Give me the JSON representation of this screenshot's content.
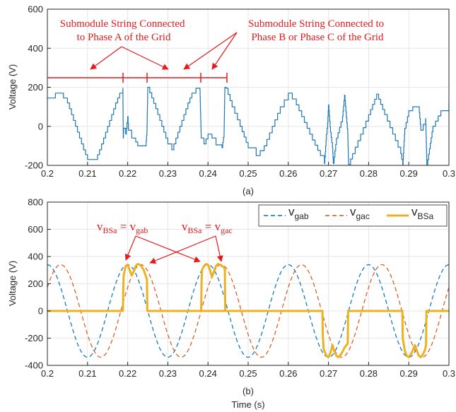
{
  "chart_data": [
    {
      "type": "line",
      "panel_label": "(a)",
      "ylabel": "Voltage (V)",
      "xlim": [
        0.2,
        0.3
      ],
      "ylim": [
        -200,
        600
      ],
      "x_ticks": [
        "0.2",
        "0.21",
        "0.22",
        "0.23",
        "0.24",
        "0.25",
        "0.26",
        "0.27",
        "0.28",
        "0.29",
        "0.3"
      ],
      "y_ticks": [
        "-200",
        "0",
        "200",
        "400",
        "600"
      ],
      "grid": true,
      "series": [
        {
          "color": "#1f77b4",
          "x": [
            0.2,
            0.202,
            0.203,
            0.205,
            0.206,
            0.207,
            0.208,
            0.209,
            0.21,
            0.212,
            0.213,
            0.214,
            0.215,
            0.216,
            0.217,
            0.218,
            0.2188,
            0.2189,
            0.219,
            0.2195,
            0.22,
            0.2202,
            0.221,
            0.222,
            0.2225,
            0.2245,
            0.2248,
            0.225,
            0.226,
            0.227,
            0.228,
            0.229,
            0.23,
            0.231,
            0.232,
            0.233,
            0.234,
            0.235,
            0.236,
            0.237,
            0.238,
            0.2383,
            0.2385,
            0.239,
            0.24,
            0.241,
            0.242,
            0.2435,
            0.244,
            0.2442,
            0.2445,
            0.246,
            0.248,
            0.25,
            0.252,
            0.254,
            0.256,
            0.258,
            0.26,
            0.262,
            0.264,
            0.266,
            0.268,
            0.269,
            0.2695,
            0.2698,
            0.27,
            0.2705,
            0.271,
            0.2712,
            0.272,
            0.2735,
            0.274,
            0.2748,
            0.275,
            0.276,
            0.278,
            0.28,
            0.282,
            0.284,
            0.286,
            0.288,
            0.2885,
            0.289,
            0.29,
            0.291,
            0.2925,
            0.293,
            0.2942,
            0.2945,
            0.296,
            0.298,
            0.3
          ],
          "y": [
            145,
            170,
            170,
            120,
            60,
            0,
            -60,
            -120,
            -170,
            -170,
            -120,
            -60,
            0,
            60,
            120,
            170,
            195,
            -60,
            -10,
            -40,
            50,
            -20,
            -60,
            -80,
            -100,
            -100,
            -20,
            200,
            145,
            90,
            30,
            -30,
            -90,
            -120,
            -60,
            0,
            60,
            120,
            170,
            195,
            185,
            -60,
            -60,
            -90,
            -40,
            -60,
            -95,
            -110,
            -30,
            200,
            195,
            100,
            0,
            -110,
            -150,
            -100,
            0,
            100,
            170,
            110,
            20,
            -70,
            -150,
            -190,
            -40,
            20,
            110,
            -30,
            -110,
            -190,
            -60,
            50,
            160,
            -40,
            -195,
            -140,
            -40,
            60,
            165,
            60,
            -40,
            -140,
            -200,
            -10,
            80,
            100,
            100,
            -20,
            40,
            -200,
            0,
            80,
            120
          ]
        }
      ],
      "annotations": [
        {
          "text": [
            "Submodule String Connected",
            "to Phase A of the Grid"
          ],
          "color": "#e41a1c"
        },
        {
          "text": [
            "Submodule String Connected to",
            "Phase B or Phase C of the Grid"
          ],
          "color": "#e41a1c"
        }
      ]
    },
    {
      "type": "line",
      "panel_label": "(b)",
      "xlabel": "Time (s)",
      "ylabel": "Voltage (V)",
      "xlim": [
        0.2,
        0.3
      ],
      "ylim": [
        -400,
        800
      ],
      "x_ticks": [
        "0.2",
        "0.21",
        "0.22",
        "0.23",
        "0.24",
        "0.25",
        "0.26",
        "0.27",
        "0.28",
        "0.29",
        "0.3"
      ],
      "y_ticks": [
        "-400",
        "-200",
        "0",
        "200",
        "400",
        "600",
        "800"
      ],
      "grid": true,
      "legend": "top-right",
      "legend_labels": [
        {
          "main": "v",
          "sub": "gab"
        },
        {
          "main": "v",
          "sub": "gac"
        },
        {
          "main": "v",
          "sub": "BSa"
        }
      ],
      "annotation_labels": [
        {
          "main1": "v",
          "sub1": "BSa",
          "eq": " = ",
          "main2": "v",
          "sub2": "gab"
        },
        {
          "main1": "v",
          "sub1": "BSa",
          "eq": " = ",
          "main2": "v",
          "sub2": "gac"
        }
      ],
      "annotation_color": "#e41a1c",
      "series": [
        {
          "color": "#0072bd",
          "style": "dashed",
          "amplitude": 340,
          "period": 0.02,
          "peak_at": 0.22
        },
        {
          "color": "#d95319",
          "style": "dashed",
          "amplitude": 340,
          "period": 0.02,
          "peak_at": 0.2233
        },
        {
          "color": "#edb120",
          "style": "solid",
          "x": [
            0.2,
            0.2188,
            0.2189,
            0.219,
            0.2195,
            0.22,
            0.2205,
            0.221,
            0.2215,
            0.222,
            0.2225,
            0.223,
            0.2235,
            0.224,
            0.2245,
            0.2248,
            0.2249,
            0.25,
            0.2383,
            0.2384,
            0.2385,
            0.239,
            0.2395,
            0.24,
            0.2405,
            0.241,
            0.2415,
            0.242,
            0.2425,
            0.243,
            0.2435,
            0.244,
            0.2442,
            0.2443,
            0.2685,
            0.2686,
            0.2688,
            0.2695,
            0.27,
            0.2705,
            0.271,
            0.2715,
            0.272,
            0.2725,
            0.273,
            0.2735,
            0.274,
            0.2748,
            0.2749,
            0.2884,
            0.2885,
            0.289,
            0.2895,
            0.29,
            0.2905,
            0.291,
            0.2915,
            0.292,
            0.2925,
            0.293,
            0.2935,
            0.294,
            0.2943,
            0.2944,
            0.3
          ],
          "y": [
            0,
            0,
            150,
            260,
            330,
            340,
            300,
            260,
            290,
            330,
            345,
            340,
            325,
            300,
            260,
            230,
            0,
            0,
            0,
            220,
            300,
            330,
            345,
            340,
            300,
            250,
            290,
            330,
            345,
            340,
            330,
            320,
            300,
            0,
            0,
            -180,
            -280,
            -330,
            -340,
            -310,
            -250,
            -300,
            -330,
            -340,
            -325,
            -300,
            -270,
            -240,
            0,
            0,
            -200,
            -290,
            -330,
            -340,
            -320,
            -290,
            -250,
            -290,
            -330,
            -340,
            -320,
            -290,
            -250,
            0,
            0
          ]
        }
      ]
    }
  ]
}
